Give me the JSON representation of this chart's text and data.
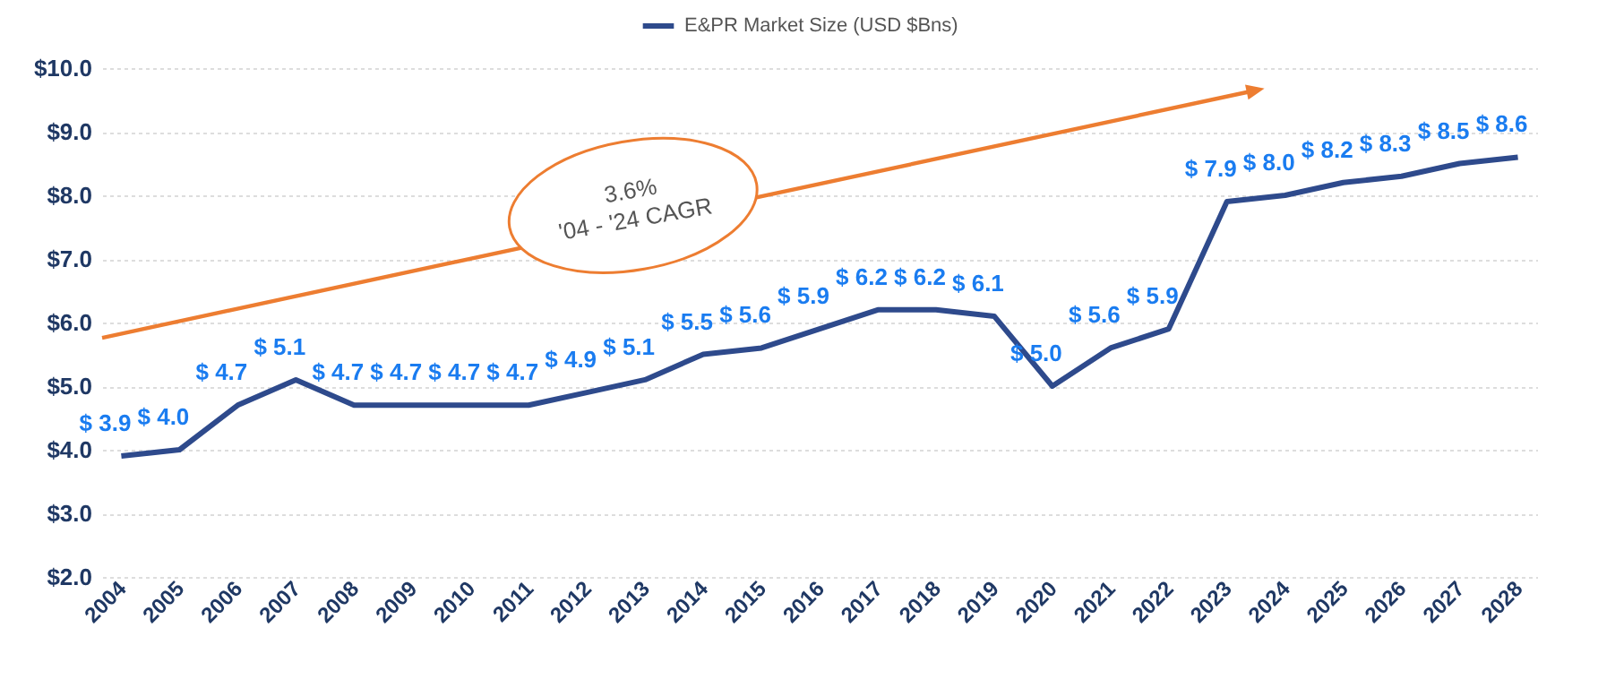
{
  "chart_data": {
    "type": "line",
    "categories": [
      "2004",
      "2005",
      "2006",
      "2007",
      "2008",
      "2009",
      "2010",
      "2011",
      "2012",
      "2013",
      "2014",
      "2015",
      "2016",
      "2017",
      "2018",
      "2019",
      "2020",
      "2021",
      "2022",
      "2023",
      "2024",
      "2025",
      "2026",
      "2027",
      "2028"
    ],
    "series": [
      {
        "name": "E&PR Market Size (USD $Bns)",
        "color": "#2e4a8c",
        "values": [
          3.9,
          4.0,
          4.7,
          5.1,
          4.7,
          4.7,
          4.7,
          4.7,
          4.9,
          5.1,
          5.5,
          5.6,
          5.9,
          6.2,
          6.2,
          6.1,
          5.0,
          5.6,
          5.9,
          7.9,
          8.0,
          8.2,
          8.3,
          8.5,
          8.6
        ],
        "value_labels": [
          "$ 3.9",
          "$ 4.0",
          "$ 4.7",
          "$ 5.1",
          "$ 4.7",
          "$ 4.7",
          "$ 4.7",
          "$ 4.7",
          "$ 4.9",
          "$ 5.1",
          "$ 5.5",
          "$ 5.6",
          "$ 5.9",
          "$ 6.2",
          "$ 6.2",
          "$ 6.1",
          "$ 5.0",
          "$ 5.6",
          "$ 5.9",
          "$ 7.9",
          "$ 8.0",
          "$ 8.2",
          "$ 8.3",
          "$ 8.5",
          "$ 8.6"
        ]
      }
    ],
    "ylim": [
      2,
      10
    ],
    "yticks": [
      {
        "value": 2,
        "label": "$2.0"
      },
      {
        "value": 3,
        "label": "$3.0"
      },
      {
        "value": 4,
        "label": "$4.0"
      },
      {
        "value": 5,
        "label": "$5.0"
      },
      {
        "value": 6,
        "label": "$6.0"
      },
      {
        "value": 7,
        "label": "$7.0"
      },
      {
        "value": 8,
        "label": "$8.0"
      },
      {
        "value": 9,
        "label": "$9.0"
      },
      {
        "value": 10,
        "label": "$10.0"
      }
    ],
    "grid": "y",
    "legend": "top",
    "marker": "none",
    "line_style": "solid",
    "annotations": [
      "3.6%\n'04 - '24 CAGR"
    ]
  }
}
